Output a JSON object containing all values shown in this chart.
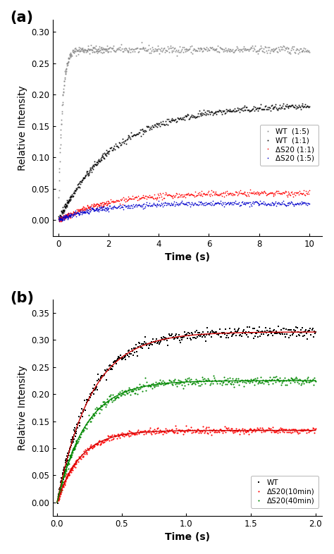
{
  "panel_a": {
    "title": "(a)",
    "xlabel": "Time (s)",
    "ylabel": "Relative Intensity",
    "xlim": [
      -0.2,
      10.5
    ],
    "ylim": [
      -0.025,
      0.32
    ],
    "yticks": [
      0.0,
      0.05,
      0.1,
      0.15,
      0.2,
      0.25,
      0.3
    ],
    "xticks": [
      0,
      2,
      4,
      6,
      8,
      10
    ],
    "curves": {
      "WT_1to1": {
        "color": "#000000",
        "label": "WT  (1:1)",
        "A": 0.183,
        "k": 0.45,
        "noise": 0.0025,
        "marker": "s",
        "markersize": 1.2
      },
      "dS20_1to1": {
        "color": "#ff0000",
        "label": "ΔS20 (1:1)",
        "A": 0.044,
        "k": 0.5,
        "noise": 0.0022,
        "marker": "o",
        "markersize": 1.2
      },
      "WT_1to5": {
        "color": "#888888",
        "label": "WT  (1:5)",
        "A": 0.272,
        "k": 7.0,
        "noise": 0.003,
        "marker": "s",
        "markersize": 1.2
      },
      "dS20_1to5": {
        "color": "#0000cc",
        "label": "ΔS20 (1:5)",
        "A": 0.027,
        "k": 0.65,
        "noise": 0.002,
        "marker": "o",
        "markersize": 1.2
      }
    }
  },
  "panel_b": {
    "title": "(b)",
    "xlabel": "Time (s)",
    "ylabel": "Relative Intensity",
    "xlim": [
      -0.03,
      2.05
    ],
    "ylim": [
      -0.025,
      0.375
    ],
    "yticks": [
      0.0,
      0.05,
      0.1,
      0.15,
      0.2,
      0.25,
      0.3,
      0.35
    ],
    "xticks": [
      0.0,
      0.5,
      1.0,
      1.5,
      2.0
    ],
    "curves": {
      "WT": {
        "color": "#000000",
        "label": "WT",
        "A": 0.315,
        "k": 3.8,
        "noise": 0.005,
        "marker": "s",
        "markersize": 1.5
      },
      "dS20_10min": {
        "color": "#ff0000",
        "label": "ΔS20(10min)",
        "A": 0.133,
        "k": 5.5,
        "noise": 0.003,
        "marker": "o",
        "markersize": 1.5
      },
      "dS20_40min": {
        "color": "#008800",
        "label": "ΔS20(40min)",
        "A": 0.225,
        "k": 4.5,
        "noise": 0.004,
        "marker": "o",
        "markersize": 1.5
      }
    }
  },
  "legend_fontsize": 7.5,
  "label_fontsize": 10,
  "tick_fontsize": 8.5,
  "panel_label_fontsize": 15
}
